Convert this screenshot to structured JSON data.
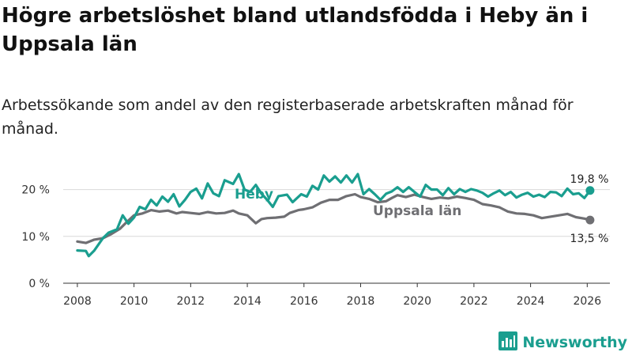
{
  "title": "Högre arbetslöshet bland utlandsfödda i Heby än i Uppsala län",
  "subtitle": "Arbetssökande som andel av den registerbaserade arbetskraften månad för månad.",
  "brand": {
    "name": "Newsworthy",
    "icon": "newsworthy-logo-icon"
  },
  "colors": {
    "heby": "#1a9e8f",
    "uppsala": "#6f6f73",
    "grid": "#d9d9d9",
    "axis": "#333333"
  },
  "chart_data": {
    "type": "line",
    "xlabel": "",
    "ylabel": "",
    "xlim": [
      2007.5,
      2026.8
    ],
    "ylim": [
      0,
      25
    ],
    "x_ticks": [
      2008,
      2010,
      2012,
      2014,
      2016,
      2018,
      2020,
      2022,
      2024,
      2026
    ],
    "x_tick_labels": [
      "2008",
      "2010",
      "2012",
      "2014",
      "2016",
      "2018",
      "2020",
      "2022",
      "2024",
      "2026"
    ],
    "y_ticks": [
      0,
      10,
      20
    ],
    "y_tick_labels": [
      "0 %",
      "10 %",
      "20 %"
    ],
    "grid": true,
    "series": [
      {
        "name": "Heby",
        "label": "Heby",
        "end_label": "19,8 %",
        "x": [
          2008.0,
          2008.3,
          2008.4,
          2008.6,
          2008.9,
          2009.1,
          2009.4,
          2009.6,
          2009.8,
          2010.0,
          2010.2,
          2010.4,
          2010.6,
          2010.8,
          2011.0,
          2011.2,
          2011.4,
          2011.6,
          2011.8,
          2012.0,
          2012.2,
          2012.4,
          2012.6,
          2012.8,
          2013.0,
          2013.2,
          2013.5,
          2013.7,
          2013.9,
          2014.1,
          2014.3,
          2014.5,
          2014.7,
          2014.9,
          2015.1,
          2015.4,
          2015.6,
          2015.9,
          2016.1,
          2016.3,
          2016.5,
          2016.7,
          2016.9,
          2017.1,
          2017.3,
          2017.5,
          2017.7,
          2017.9,
          2018.1,
          2018.3,
          2018.5,
          2018.7,
          2018.9,
          2019.1,
          2019.3,
          2019.5,
          2019.7,
          2019.9,
          2020.1,
          2020.3,
          2020.5,
          2020.7,
          2020.9,
          2021.1,
          2021.3,
          2021.5,
          2021.7,
          2021.9,
          2022.1,
          2022.3,
          2022.5,
          2022.7,
          2022.9,
          2023.1,
          2023.3,
          2023.5,
          2023.7,
          2023.9,
          2024.1,
          2024.3,
          2024.5,
          2024.7,
          2024.9,
          2025.1,
          2025.3,
          2025.5,
          2025.7,
          2025.9,
          2026.1
        ],
        "values": [
          7.0,
          6.9,
          5.8,
          7.0,
          9.6,
          10.8,
          11.5,
          14.5,
          12.7,
          14.0,
          16.3,
          15.8,
          17.8,
          16.6,
          18.5,
          17.4,
          19.0,
          16.4,
          17.8,
          19.5,
          20.2,
          18.1,
          21.3,
          19.2,
          18.6,
          22.0,
          21.2,
          23.3,
          20.0,
          19.5,
          21.0,
          19.1,
          17.8,
          16.3,
          18.6,
          18.9,
          17.3,
          19.0,
          18.5,
          20.8,
          20.0,
          23.0,
          21.7,
          22.8,
          21.5,
          23.0,
          21.5,
          23.3,
          19.0,
          20.1,
          19.0,
          17.8,
          19.1,
          19.6,
          20.5,
          19.5,
          20.5,
          19.5,
          18.5,
          21.0,
          20.0,
          20.0,
          18.8,
          20.3,
          19.0,
          20.1,
          19.5,
          20.1,
          19.8,
          19.3,
          18.5,
          19.2,
          19.8,
          18.8,
          19.5,
          18.3,
          18.9,
          19.3,
          18.5,
          18.9,
          18.4,
          19.5,
          19.4,
          18.6,
          20.2,
          19.0,
          19.2,
          18.2,
          19.8
        ]
      },
      {
        "name": "Uppsala län",
        "label": "Uppsala län",
        "end_label": "13,5 %",
        "x": [
          2008.0,
          2008.3,
          2008.6,
          2008.9,
          2009.2,
          2009.5,
          2009.7,
          2010.0,
          2010.3,
          2010.6,
          2010.9,
          2011.2,
          2011.5,
          2011.7,
          2012.0,
          2012.3,
          2012.6,
          2012.9,
          2013.2,
          2013.5,
          2013.7,
          2014.0,
          2014.3,
          2014.5,
          2014.7,
          2015.0,
          2015.3,
          2015.5,
          2015.8,
          2016.0,
          2016.3,
          2016.6,
          2016.9,
          2017.2,
          2017.5,
          2017.8,
          2018.0,
          2018.3,
          2018.6,
          2018.9,
          2019.1,
          2019.3,
          2019.6,
          2019.9,
          2020.2,
          2020.5,
          2020.8,
          2021.1,
          2021.4,
          2021.7,
          2022.0,
          2022.3,
          2022.6,
          2022.9,
          2023.2,
          2023.5,
          2023.8,
          2024.1,
          2024.4,
          2024.7,
          2025.0,
          2025.3,
          2025.6,
          2025.9,
          2026.1
        ],
        "values": [
          8.9,
          8.6,
          9.3,
          9.6,
          10.5,
          11.6,
          12.8,
          14.5,
          14.9,
          15.6,
          15.3,
          15.5,
          14.9,
          15.2,
          15.0,
          14.8,
          15.2,
          14.9,
          15.0,
          15.5,
          14.9,
          14.5,
          12.8,
          13.7,
          13.9,
          14.0,
          14.2,
          15.0,
          15.6,
          15.8,
          16.2,
          17.2,
          17.8,
          17.8,
          18.6,
          19.0,
          18.4,
          18.0,
          17.3,
          17.5,
          18.2,
          18.8,
          18.4,
          18.9,
          18.4,
          18.0,
          18.3,
          18.1,
          18.5,
          18.2,
          17.8,
          16.9,
          16.6,
          16.2,
          15.3,
          14.9,
          14.8,
          14.5,
          13.9,
          14.2,
          14.5,
          14.8,
          14.1,
          13.8,
          13.5
        ]
      }
    ]
  }
}
